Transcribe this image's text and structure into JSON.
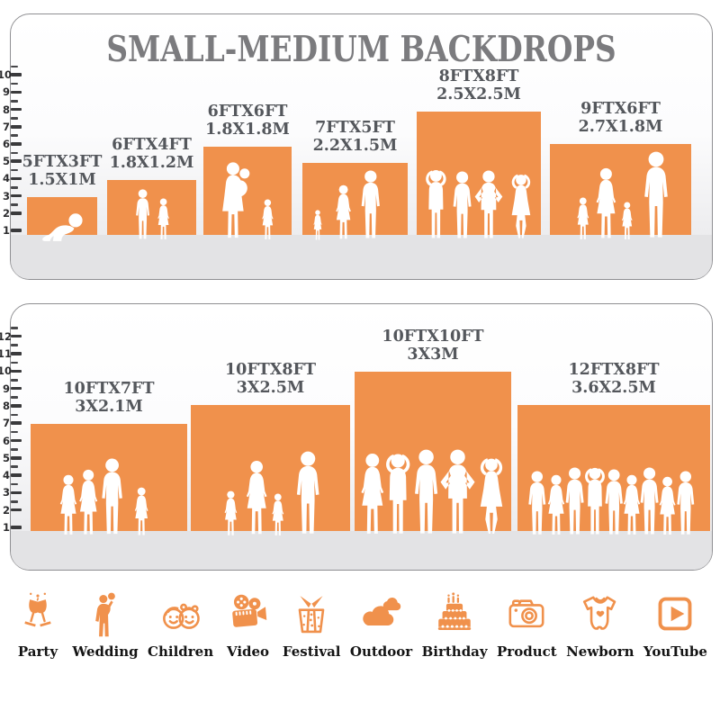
{
  "title": "SMALL-MEDIUM BACKDROPS",
  "accent_color": "#F0914C",
  "panels": [
    {
      "name": "small-medium-sizes",
      "ruler_numbers": [
        "10",
        "9",
        "8",
        "7",
        "6",
        "5",
        "4",
        "3",
        "2",
        "1"
      ],
      "backdrops": [
        {
          "size_ft": "5FTX3FT",
          "size_m": "1.5X1M"
        },
        {
          "size_ft": "6FTX4FT",
          "size_m": "1.8X1.2M"
        },
        {
          "size_ft": "6FTX6FT",
          "size_m": "1.8X1.8M"
        },
        {
          "size_ft": "7FTX5FT",
          "size_m": "2.2X1.5M"
        },
        {
          "size_ft": "8FTX8FT",
          "size_m": "2.5X2.5M"
        },
        {
          "size_ft": "9FTX6FT",
          "size_m": "2.7X1.8M"
        }
      ]
    },
    {
      "name": "large-sizes",
      "ruler_numbers": [
        "12",
        "11",
        "10",
        "9",
        "8",
        "7",
        "6",
        "5",
        "4",
        "3",
        "2",
        "1"
      ],
      "backdrops": [
        {
          "size_ft": "10FTX7FT",
          "size_m": "3X2.1M"
        },
        {
          "size_ft": "10FTX8FT",
          "size_m": "3X2.5M"
        },
        {
          "size_ft": "10FTX10FT",
          "size_m": "3X3M"
        },
        {
          "size_ft": "12FTX8FT",
          "size_m": "3.6X2.5M"
        }
      ]
    }
  ],
  "categories": [
    {
      "icon": "party-icon",
      "label": "Party"
    },
    {
      "icon": "wedding-icon",
      "label": "Wedding"
    },
    {
      "icon": "children-icon",
      "label": "Children"
    },
    {
      "icon": "video-icon",
      "label": "Video"
    },
    {
      "icon": "festival-icon",
      "label": "Festival"
    },
    {
      "icon": "outdoor-icon",
      "label": "Outdoor"
    },
    {
      "icon": "birthday-icon",
      "label": "Birthday"
    },
    {
      "icon": "product-icon",
      "label": "Product"
    },
    {
      "icon": "newborn-icon",
      "label": "Newborn"
    },
    {
      "icon": "youtube-icon",
      "label": "YouTube"
    }
  ]
}
